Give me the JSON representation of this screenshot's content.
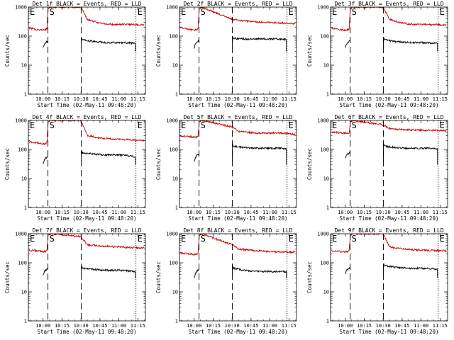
{
  "chart_data": {
    "type": "line",
    "layout": "3x3 grid",
    "shared": {
      "ylabel": "Counts/sec",
      "xlabel": "Start Time (02-May-11 09:48:20)",
      "yscale": "log",
      "ylim": [
        1,
        1000
      ],
      "y_ticks": [
        "1",
        "10",
        "100",
        "1000"
      ],
      "xlim": [
        "09:48:20",
        "11:21:00"
      ],
      "x_ticks": [
        "10:00",
        "10:15",
        "10:30",
        "10:45",
        "11:00",
        "11:15"
      ],
      "grid": false,
      "series": [
        {
          "color": "#000000"
        },
        {
          "color": "#cc0000"
        }
      ],
      "markers": [
        {
          "label": "E",
          "time": "09:48:20",
          "linestyle": "dotted"
        },
        {
          "label": "S",
          "time": "10:03:50",
          "linestyle": "dashed"
        },
        {
          "label": "",
          "time": "10:30:10",
          "linestyle": "dashed"
        },
        {
          "label": "E",
          "time": "11:13:30",
          "linestyle": "dotted"
        }
      ]
    },
    "panels": [
      {
        "title": "Det 1f BLACK = Events, RED = LLD",
        "series": [
          {
            "x": [
              "09:49",
              "10:00",
              "10:01",
              "10:03",
              "10:03:50",
              "10:30:10",
              "10:31",
              "10:40",
              "10:50",
              "11:00",
              "11:10",
              "11:13"
            ],
            "y": [
              null,
              40,
              55,
              65,
              72,
              85,
              75,
              65,
              60,
              60,
              58,
              55
            ]
          },
          {
            "x": [
              "09:49",
              "09:55",
              "10:00",
              "10:03",
              "10:04",
              "10:06",
              "10:30",
              "10:35",
              "10:45",
              "10:55",
              "11:05",
              "11:13",
              "11:20"
            ],
            "y": [
              190,
              170,
              160,
              175,
              900,
              1000,
              1000,
              380,
              280,
              250,
              255,
              250,
              240
            ]
          }
        ]
      },
      {
        "title": "Det 2f BLACK = Events, RED = LLD",
        "series": [
          {
            "x": [
              "10:00",
              "10:01",
              "10:03",
              "10:03:50",
              "10:30:10",
              "10:31",
              "10:40",
              "10:50",
              "11:00",
              "11:10",
              "11:13"
            ],
            "y": [
              40,
              55,
              65,
              72,
              95,
              85,
              80,
              80,
              80,
              80,
              75
            ]
          },
          {
            "x": [
              "09:49",
              "09:55",
              "10:00",
              "10:03",
              "10:04",
              "10:06",
              "10:30",
              "10:35",
              "10:45",
              "10:55",
              "11:05",
              "11:13",
              "11:20"
            ],
            "y": [
              200,
              175,
              160,
              175,
              900,
              1000,
              380,
              350,
              320,
              300,
              290,
              280,
              270
            ]
          }
        ]
      },
      {
        "title": "Det 3f BLACK = Events, RED = LLD",
        "series": [
          {
            "x": [
              "10:00",
              "10:01",
              "10:03",
              "10:03:50",
              "10:30:10",
              "10:31",
              "10:40",
              "10:50",
              "11:00",
              "11:10",
              "11:13"
            ],
            "y": [
              40,
              55,
              65,
              72,
              85,
              75,
              65,
              60,
              60,
              58,
              55
            ]
          },
          {
            "x": [
              "09:49",
              "09:55",
              "10:00",
              "10:03",
              "10:04",
              "10:06",
              "10:30",
              "10:35",
              "10:45",
              "10:55",
              "11:05",
              "11:13",
              "11:20"
            ],
            "y": [
              190,
              170,
              160,
              175,
              900,
              1000,
              1000,
              380,
              280,
              250,
              255,
              250,
              240
            ]
          }
        ]
      },
      {
        "title": "Det 4f BLACK = Events, RED = LLD",
        "series": [
          {
            "x": [
              "10:00",
              "10:01",
              "10:03",
              "10:03:50",
              "10:30:10",
              "10:31",
              "10:40",
              "10:50",
              "11:00",
              "11:10",
              "11:13"
            ],
            "y": [
              30,
              45,
              55,
              60,
              90,
              75,
              70,
              65,
              65,
              60,
              55
            ]
          },
          {
            "x": [
              "09:49",
              "09:55",
              "10:00",
              "10:03",
              "10:04",
              "10:06",
              "10:30",
              "10:35",
              "10:45",
              "10:55",
              "11:05",
              "11:13",
              "11:20"
            ],
            "y": [
              180,
              170,
              150,
              170,
              900,
              1000,
              1000,
              300,
              250,
              230,
              220,
              210,
              200
            ]
          }
        ]
      },
      {
        "title": "Det 5f BLACK = Events, RED = LLD",
        "series": [
          {
            "x": [
              "10:00",
              "10:01",
              "10:03",
              "10:03:50",
              "10:30:10",
              "10:31",
              "10:40",
              "10:50",
              "11:00",
              "11:10",
              "11:13"
            ],
            "y": [
              40,
              55,
              65,
              72,
              160,
              130,
              115,
              110,
              110,
              110,
              105
            ]
          },
          {
            "x": [
              "09:49",
              "09:55",
              "10:00",
              "10:03",
              "10:04",
              "10:06",
              "10:30",
              "10:35",
              "10:45",
              "10:55",
              "11:05",
              "11:13",
              "11:20"
            ],
            "y": [
              290,
              280,
              260,
              280,
              900,
              1000,
              600,
              420,
              380,
              360,
              370,
              360,
              330
            ]
          }
        ]
      },
      {
        "title": "Det 6f BLACK = Events, RED = LLD",
        "series": [
          {
            "x": [
              "10:00",
              "10:01",
              "10:03",
              "10:03:50",
              "10:30:10",
              "10:31",
              "10:40",
              "10:50",
              "11:00",
              "11:10",
              "11:13"
            ],
            "y": [
              50,
              65,
              75,
              80,
              160,
              130,
              115,
              110,
              110,
              110,
              105
            ]
          },
          {
            "x": [
              "09:49",
              "09:55",
              "10:00",
              "10:03",
              "10:04",
              "10:06",
              "10:30",
              "10:35",
              "10:45",
              "10:55",
              "11:05",
              "11:13",
              "11:20"
            ],
            "y": [
              400,
              380,
              360,
              380,
              900,
              1000,
              700,
              520,
              480,
              470,
              460,
              450,
              440
            ]
          }
        ]
      },
      {
        "title": "Det 7f BLACK = Events, RED = LLD",
        "series": [
          {
            "x": [
              "10:00",
              "10:01",
              "10:03",
              "10:03:50",
              "10:30:10",
              "10:31",
              "10:40",
              "10:50",
              "11:00",
              "11:10",
              "11:13"
            ],
            "y": [
              35,
              50,
              60,
              70,
              80,
              65,
              60,
              55,
              55,
              52,
              50
            ]
          },
          {
            "x": [
              "09:49",
              "09:55",
              "10:00",
              "10:03",
              "10:04",
              "10:06",
              "10:30",
              "10:35",
              "10:45",
              "10:55",
              "11:05",
              "11:13",
              "11:20"
            ],
            "y": [
              270,
              260,
              240,
              260,
              900,
              1000,
              800,
              420,
              380,
              360,
              340,
              330,
              320
            ]
          }
        ]
      },
      {
        "title": "Det 8f BLACK = Events, RED = LLD",
        "series": [
          {
            "x": [
              "10:00",
              "10:01",
              "10:03",
              "10:03:50",
              "10:30:10",
              "10:31",
              "10:40",
              "10:50",
              "11:00",
              "11:10",
              "11:13"
            ],
            "y": [
              30,
              45,
              55,
              60,
              80,
              65,
              55,
              50,
              50,
              50,
              50
            ]
          },
          {
            "x": [
              "09:49",
              "09:55",
              "10:00",
              "10:03",
              "10:04",
              "10:06",
              "10:30",
              "10:35",
              "10:45",
              "10:55",
              "11:05",
              "11:13",
              "11:20"
            ],
            "y": [
              220,
              210,
              190,
              210,
              900,
              1000,
              420,
              300,
              270,
              250,
              240,
              235,
              230
            ]
          }
        ]
      },
      {
        "title": "Det 9f BLACK = Events, RED = LLD",
        "series": [
          {
            "x": [
              "10:00",
              "10:01",
              "10:03",
              "10:03:50",
              "10:30:10",
              "10:31",
              "10:40",
              "10:50",
              "11:00",
              "11:10",
              "11:13"
            ],
            "y": [
              40,
              55,
              65,
              72,
              95,
              80,
              70,
              65,
              65,
              62,
              60
            ]
          },
          {
            "x": [
              "09:49",
              "09:55",
              "10:00",
              "10:03",
              "10:04",
              "10:06",
              "10:30",
              "10:35",
              "10:45",
              "10:55",
              "11:05",
              "11:13",
              "11:20"
            ],
            "y": [
              260,
              250,
              230,
              250,
              900,
              1000,
              1000,
              350,
              300,
              280,
              270,
              265,
              260
            ]
          }
        ]
      }
    ]
  }
}
